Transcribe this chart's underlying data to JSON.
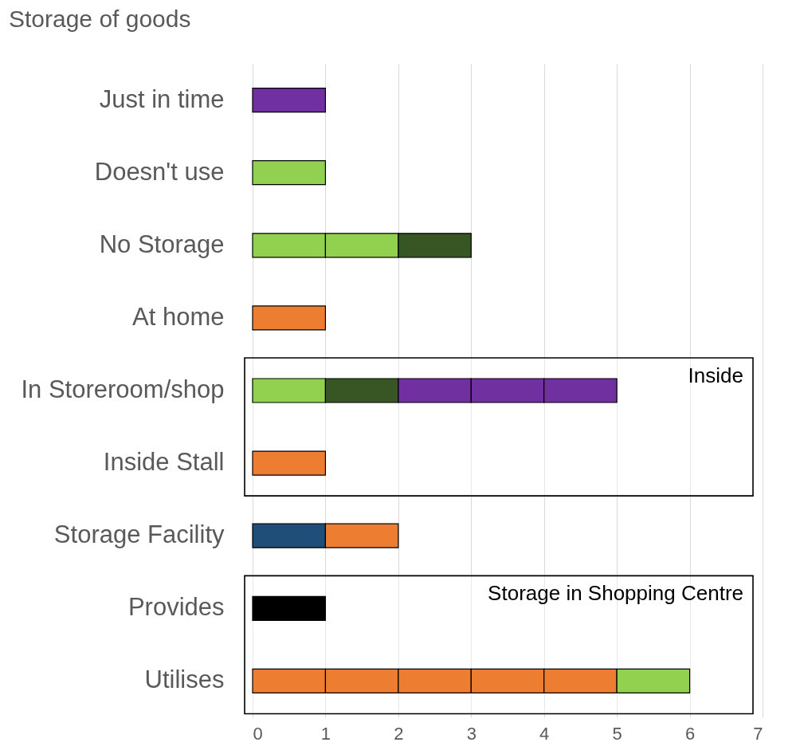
{
  "chart_data": {
    "type": "bar",
    "title": "Storage of goods",
    "orientation": "horizontal",
    "stacked": true,
    "categories": [
      "Just in time",
      "Doesn't use",
      "No Storage",
      "At home",
      "In Storeroom/shop",
      "Inside Stall",
      "Storage Facility",
      "Provides",
      "Utilises"
    ],
    "series": [
      {
        "colors": [
          "#7030a0",
          "#92d050",
          "#92d050",
          "#ed7d31",
          "#92d050",
          "#ed7d31",
          "#1f4e79",
          "#000000",
          "#ed7d31"
        ],
        "values": [
          1,
          1,
          1,
          1,
          1,
          1,
          1,
          1,
          1
        ]
      },
      {
        "colors": [
          null,
          null,
          "#92d050",
          null,
          "#375623",
          null,
          "#ed7d31",
          null,
          "#ed7d31"
        ],
        "values": [
          null,
          null,
          1,
          null,
          1,
          null,
          1,
          null,
          1
        ]
      },
      {
        "colors": [
          null,
          null,
          "#375623",
          null,
          "#7030a0",
          null,
          null,
          null,
          "#ed7d31"
        ],
        "values": [
          null,
          null,
          1,
          null,
          1,
          null,
          null,
          null,
          1
        ]
      },
      {
        "colors": [
          null,
          null,
          null,
          null,
          "#7030a0",
          null,
          null,
          null,
          "#ed7d31"
        ],
        "values": [
          null,
          null,
          null,
          null,
          1,
          null,
          null,
          null,
          1
        ]
      },
      {
        "colors": [
          null,
          null,
          null,
          null,
          "#7030a0",
          null,
          null,
          null,
          "#ed7d31"
        ],
        "values": [
          null,
          null,
          null,
          null,
          1,
          null,
          null,
          null,
          1
        ]
      },
      {
        "colors": [
          null,
          null,
          null,
          null,
          null,
          null,
          null,
          null,
          "#92d050"
        ],
        "values": [
          null,
          null,
          null,
          null,
          null,
          null,
          null,
          null,
          1
        ]
      }
    ],
    "xlim": [
      0,
      7
    ],
    "xticks": [
      0,
      1,
      2,
      3,
      4,
      5,
      6,
      7
    ],
    "grid": "x",
    "bands": [
      {
        "axis": "y",
        "from": "In Storeroom/shop",
        "to": "Inside Stall",
        "label": "Inside",
        "color": "#ffffff"
      },
      {
        "axis": "y",
        "from": "Provides",
        "to": "Utilises",
        "label": "Storage in Shopping Centre",
        "color": "#ffffff"
      }
    ]
  }
}
